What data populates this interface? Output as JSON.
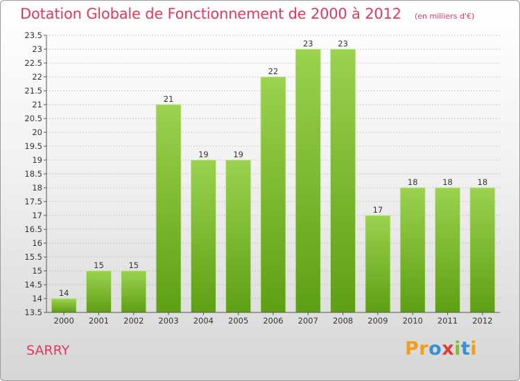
{
  "title": "Dotation Globale de Fonctionnement de 2000 à 2012",
  "subtitle": "(en milliers d'€)",
  "commune": "SARRY",
  "logo": {
    "letters": [
      "P",
      "r",
      "o",
      "x",
      "i",
      "t",
      "i"
    ],
    "colors": [
      "#f39c1e",
      "#f39c1e",
      "#3a8fd0",
      "#e23a3a",
      "#7bbf2a",
      "#3a8fd0",
      "#f39c1e"
    ]
  },
  "colors": {
    "accent": "#e2395c",
    "bar_light": "#9bd24f",
    "bar_dark": "#5e9f14",
    "grid": "#bdbdbd"
  },
  "chart_data": {
    "type": "bar",
    "categories": [
      "2000",
      "2001",
      "2002",
      "2003",
      "2004",
      "2005",
      "2006",
      "2007",
      "2008",
      "2009",
      "2010",
      "2011",
      "2012"
    ],
    "values": [
      14,
      15,
      15,
      21,
      19,
      19,
      22,
      23,
      23,
      17,
      18,
      18,
      18
    ],
    "data_labels": [
      "14",
      "15",
      "15",
      "21",
      "19",
      "19",
      "22",
      "23",
      "23",
      "17",
      "18",
      "18",
      "18"
    ],
    "ylim": [
      13.5,
      23.5
    ],
    "ytick_step": 0.5,
    "ytick_labels": [
      "13.5",
      "14",
      "14.5",
      "15",
      "15.5",
      "16",
      "16.5",
      "17",
      "17.5",
      "18",
      "18.5",
      "19",
      "19.5",
      "20",
      "20.5",
      "21",
      "21.5",
      "22",
      "22.5",
      "23",
      "23.5"
    ],
    "grid": true
  }
}
